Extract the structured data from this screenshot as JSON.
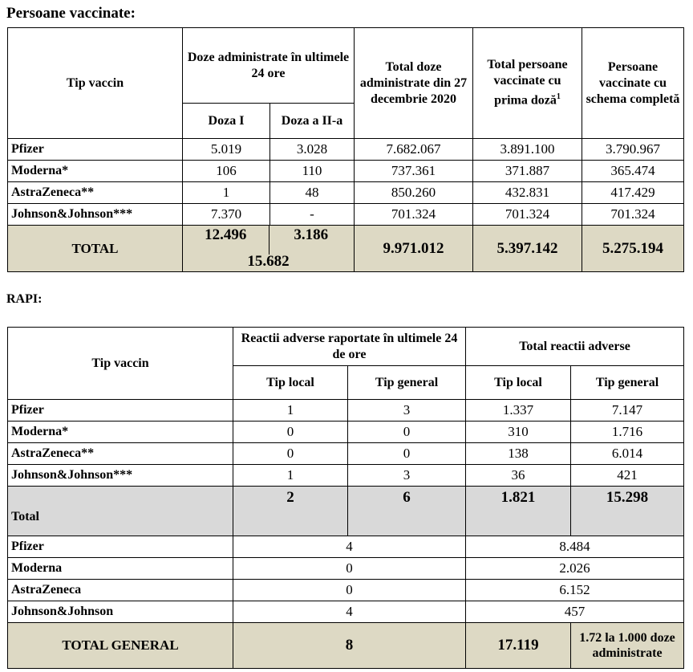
{
  "section1": {
    "title": "Persoane vaccinate:",
    "headers": {
      "tip_vaccin": "Tip vaccin",
      "doze_24h": "Doze administrate în ultimele 24 ore",
      "doza1": "Doza I",
      "doza2": "Doza a II-a",
      "total_doze": "Total doze administrate din 27 decembrie 2020",
      "prima_doza": "Total persoane vaccinate cu prima doză",
      "prima_doza_sup": "1",
      "schema_completa": "Persoane vaccinate cu schema completă"
    },
    "rows": [
      {
        "name": "Pfizer",
        "d1": "5.019",
        "d2": "3.028",
        "total": "7.682.067",
        "prima": "3.891.100",
        "complet": "3.790.967"
      },
      {
        "name": "Moderna*",
        "d1": "106",
        "d2": "110",
        "total": "737.361",
        "prima": "371.887",
        "complet": "365.474"
      },
      {
        "name": "AstraZeneca**",
        "d1": "1",
        "d2": "48",
        "total": "850.260",
        "prima": "432.831",
        "complet": "417.429"
      },
      {
        "name": "Johnson&Johnson***",
        "d1": "7.370",
        "d2": "-",
        "total": "701.324",
        "prima": "701.324",
        "complet": "701.324"
      }
    ],
    "total": {
      "label": "TOTAL",
      "d1": "12.496",
      "d2": "3.186",
      "d_sum": "15.682",
      "total": "9.971.012",
      "prima": "5.397.142",
      "complet": "5.275.194"
    }
  },
  "section2": {
    "title": "RAPI:",
    "headers": {
      "tip_vaccin": "Tip vaccin",
      "reactii_24h": "Reactii adverse raportate în ultimele 24 de ore",
      "total_reactii": "Total reactii adverse",
      "tip_local": "Tip local",
      "tip_general": "Tip general"
    },
    "rows": [
      {
        "name": "Pfizer",
        "l24": "1",
        "g24": "3",
        "lt": "1.337",
        "gt": "7.147"
      },
      {
        "name": "Moderna*",
        "l24": "0",
        "g24": "0",
        "lt": "310",
        "gt": "1.716"
      },
      {
        "name": "AstraZeneca**",
        "l24": "0",
        "g24": "0",
        "lt": "138",
        "gt": "6.014"
      },
      {
        "name": "Johnson&Johnson***",
        "l24": "1",
        "g24": "3",
        "lt": "36",
        "gt": "421"
      }
    ],
    "total": {
      "label": "Total",
      "l24": "2",
      "g24": "6",
      "lt": "1.821",
      "gt": "15.298"
    },
    "summary_rows": [
      {
        "name": "Pfizer",
        "r24": "4",
        "rt": "8.484"
      },
      {
        "name": "Moderna",
        "r24": "0",
        "rt": "2.026"
      },
      {
        "name": "AstraZeneca",
        "r24": "0",
        "rt": "6.152"
      },
      {
        "name": "Johnson&Johnson",
        "r24": "4",
        "rt": "457"
      }
    ],
    "total_general": {
      "label": "TOTAL GENERAL",
      "r24": "8",
      "rt": "17.119",
      "rate": "1.72 la 1.000 doze administrate"
    }
  }
}
